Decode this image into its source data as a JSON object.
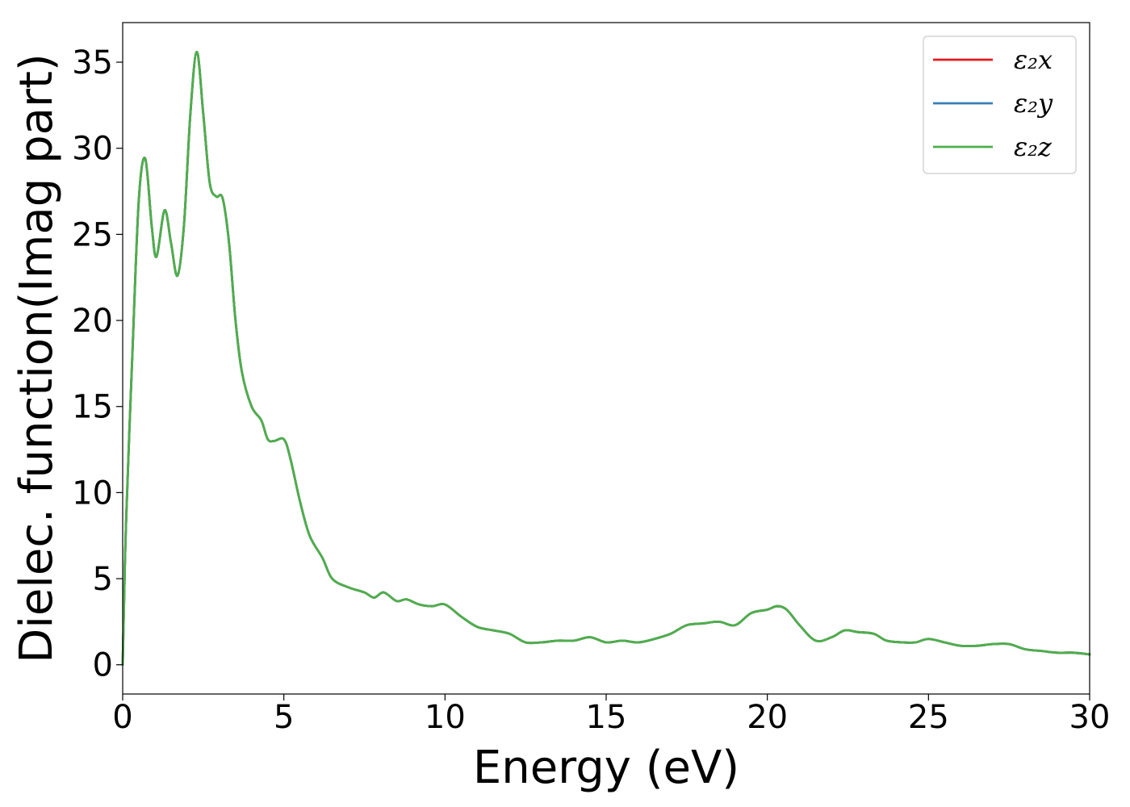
{
  "chart_data": {
    "type": "line",
    "title": "",
    "xlabel": "Energy (eV)",
    "ylabel": "Dielec. function(Imag part)",
    "xlim": [
      0,
      30
    ],
    "ylim": [
      -1.7,
      37.3
    ],
    "xticks": [
      0,
      5,
      10,
      15,
      20,
      25,
      30
    ],
    "yticks": [
      0,
      5,
      10,
      15,
      20,
      25,
      30,
      35
    ],
    "grid": false,
    "legend_position": "top-right",
    "x": [
      0,
      0.1,
      0.3,
      0.5,
      0.7,
      0.9,
      1.05,
      1.3,
      1.5,
      1.7,
      1.9,
      2.1,
      2.3,
      2.5,
      2.7,
      2.9,
      3.1,
      3.3,
      3.5,
      3.7,
      4.0,
      4.3,
      4.5,
      4.7,
      5.0,
      5.2,
      5.5,
      5.8,
      6.2,
      6.5,
      7.0,
      7.5,
      7.8,
      8.1,
      8.5,
      8.8,
      9.2,
      9.6,
      10.0,
      10.5,
      11.0,
      11.5,
      12.0,
      12.5,
      13.0,
      13.5,
      14.0,
      14.5,
      15.0,
      15.5,
      16.0,
      16.5,
      17.0,
      17.5,
      18.0,
      18.5,
      19.0,
      19.5,
      20.0,
      20.3,
      20.6,
      21.0,
      21.5,
      22.0,
      22.4,
      22.8,
      23.3,
      23.7,
      24.2,
      24.6,
      25.0,
      25.5,
      26.0,
      26.5,
      27.0,
      27.5,
      28.0,
      28.5,
      29.0,
      29.5,
      30.0
    ],
    "series": [
      {
        "name": "ε₂x",
        "color": "#e41a1c",
        "values": [
          0.0,
          8.0,
          18.0,
          27.0,
          29.4,
          25.5,
          23.7,
          26.4,
          24.5,
          22.6,
          25.5,
          32.0,
          35.6,
          32.0,
          28.0,
          27.2,
          27.1,
          24.5,
          20.0,
          17.0,
          15.0,
          14.2,
          13.1,
          13.0,
          13.1,
          12.0,
          9.5,
          7.5,
          6.2,
          5.0,
          4.5,
          4.2,
          3.9,
          4.2,
          3.7,
          3.8,
          3.5,
          3.4,
          3.5,
          2.8,
          2.2,
          2.0,
          1.8,
          1.3,
          1.3,
          1.4,
          1.4,
          1.6,
          1.3,
          1.4,
          1.3,
          1.5,
          1.8,
          2.3,
          2.4,
          2.5,
          2.3,
          3.0,
          3.2,
          3.4,
          3.2,
          2.3,
          1.4,
          1.6,
          2.0,
          1.9,
          1.8,
          1.4,
          1.3,
          1.3,
          1.5,
          1.3,
          1.1,
          1.1,
          1.2,
          1.2,
          0.9,
          0.8,
          0.7,
          0.7,
          0.6
        ]
      },
      {
        "name": "ε₂y",
        "color": "#377eb8",
        "values": [
          0.0,
          8.0,
          18.0,
          27.0,
          29.4,
          25.5,
          23.7,
          26.4,
          24.5,
          22.6,
          25.5,
          32.0,
          35.6,
          32.0,
          28.0,
          27.2,
          27.1,
          24.5,
          20.0,
          17.0,
          15.0,
          14.2,
          13.1,
          13.0,
          13.1,
          12.0,
          9.5,
          7.5,
          6.2,
          5.0,
          4.5,
          4.2,
          3.9,
          4.2,
          3.7,
          3.8,
          3.5,
          3.4,
          3.5,
          2.8,
          2.2,
          2.0,
          1.8,
          1.3,
          1.3,
          1.4,
          1.4,
          1.6,
          1.3,
          1.4,
          1.3,
          1.5,
          1.8,
          2.3,
          2.4,
          2.5,
          2.3,
          3.0,
          3.2,
          3.4,
          3.2,
          2.3,
          1.4,
          1.6,
          2.0,
          1.9,
          1.8,
          1.4,
          1.3,
          1.3,
          1.5,
          1.3,
          1.1,
          1.1,
          1.2,
          1.2,
          0.9,
          0.8,
          0.7,
          0.7,
          0.6
        ]
      },
      {
        "name": "ε₂z",
        "color": "#4daf4a",
        "values": [
          0.0,
          8.0,
          18.0,
          27.0,
          29.4,
          25.5,
          23.7,
          26.4,
          24.5,
          22.6,
          25.5,
          32.0,
          35.6,
          32.0,
          28.0,
          27.2,
          27.1,
          24.5,
          20.0,
          17.0,
          15.0,
          14.2,
          13.1,
          13.0,
          13.1,
          12.0,
          9.5,
          7.5,
          6.2,
          5.0,
          4.5,
          4.2,
          3.9,
          4.2,
          3.7,
          3.8,
          3.5,
          3.4,
          3.5,
          2.8,
          2.2,
          2.0,
          1.8,
          1.3,
          1.3,
          1.4,
          1.4,
          1.6,
          1.3,
          1.4,
          1.3,
          1.5,
          1.8,
          2.3,
          2.4,
          2.5,
          2.3,
          3.0,
          3.2,
          3.4,
          3.2,
          2.3,
          1.4,
          1.6,
          2.0,
          1.9,
          1.8,
          1.4,
          1.3,
          1.3,
          1.5,
          1.3,
          1.1,
          1.1,
          1.2,
          1.2,
          0.9,
          0.8,
          0.7,
          0.7,
          0.6
        ]
      }
    ]
  }
}
